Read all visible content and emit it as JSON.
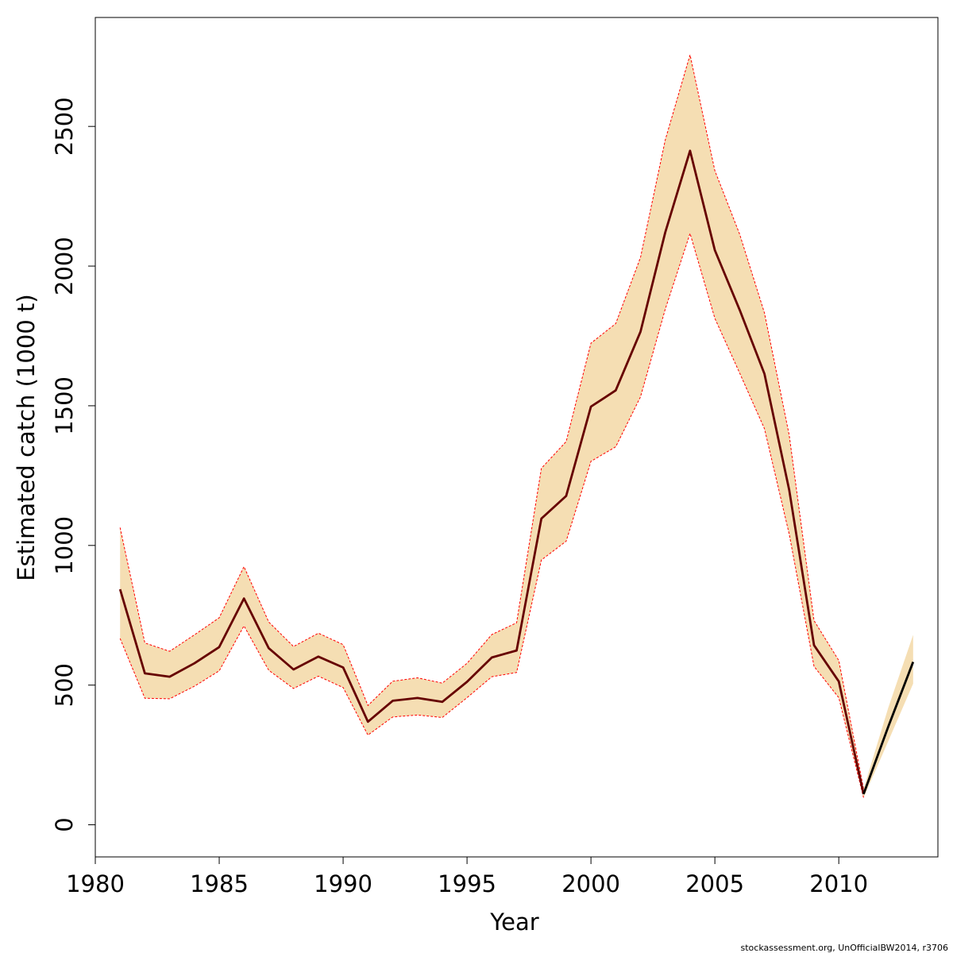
{
  "chart_data": {
    "type": "line",
    "xlabel": "Year",
    "ylabel": "Estimated catch (1000 t)",
    "xlim": [
      1980,
      2014
    ],
    "ylim": [
      -115,
      2890
    ],
    "x_ticks": [
      1980,
      1985,
      1990,
      1995,
      2000,
      2005,
      2010
    ],
    "y_ticks": [
      0,
      500,
      1000,
      1500,
      2000,
      2500
    ],
    "grid": false,
    "colors": {
      "band_fill": "#f5deb3",
      "band_edge": "#ff0000",
      "estimate_line": "#660000",
      "projection_line": "#000000"
    },
    "x": [
      1981,
      1982,
      1983,
      1984,
      1985,
      1986,
      1987,
      1988,
      1989,
      1990,
      1991,
      1992,
      1993,
      1994,
      1995,
      1996,
      1997,
      1998,
      1999,
      2000,
      2001,
      2002,
      2003,
      2004,
      2005,
      2006,
      2007,
      2008,
      2009,
      2010,
      2011,
      2012,
      2013
    ],
    "series": [
      {
        "values": [
          843,
          542,
          530,
          578,
          636,
          810,
          632,
          556,
          602,
          563,
          369,
          444,
          454,
          440,
          512,
          599,
          624,
          1096,
          1177,
          1497,
          1555,
          1765,
          2121,
          2413,
          2057,
          1843,
          1614,
          1198,
          643,
          513,
          110,
          352,
          583
        ],
        "lower": [
          667,
          453,
          451,
          496,
          551,
          712,
          553,
          488,
          532,
          491,
          321,
          386,
          393,
          384,
          455,
          530,
          545,
          948,
          1015,
          1301,
          1353,
          1532,
          1846,
          2117,
          1813,
          1617,
          1418,
          1040,
          567,
          455,
          97,
          300,
          505
        ],
        "upper": [
          1064,
          651,
          621,
          680,
          741,
          924,
          726,
          638,
          686,
          645,
          427,
          514,
          526,
          507,
          578,
          681,
          723,
          1276,
          1372,
          1724,
          1794,
          2031,
          2452,
          2756,
          2342,
          2114,
          1832,
          1394,
          731,
          588,
          128,
          420,
          680
        ]
      }
    ],
    "projection_from": 2011
  },
  "credit": "stockassessment.org, UnOfficialBW2014, r3706"
}
